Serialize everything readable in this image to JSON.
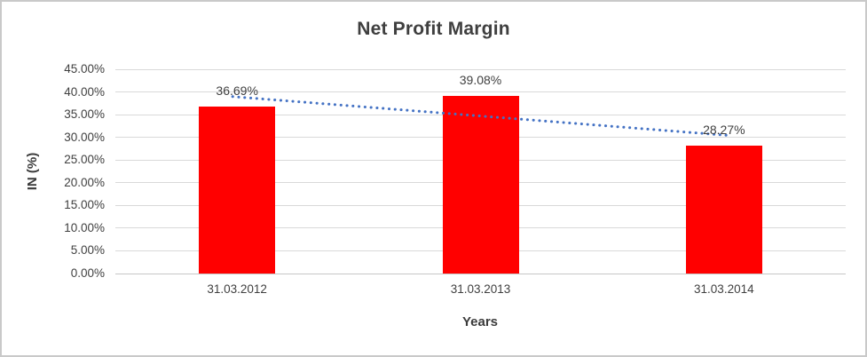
{
  "chart_data": {
    "type": "bar",
    "title": "Net Profit Margin",
    "xlabel": "Years",
    "ylabel": "IN (%)",
    "categories": [
      "31.03.2012",
      "31.03.2013",
      "31.03.2014"
    ],
    "values": [
      36.69,
      39.08,
      28.27
    ],
    "data_labels": [
      "36.69%",
      "39.08%",
      "28.27%"
    ],
    "ylim": [
      0,
      45
    ],
    "ytick_step": 5,
    "ytick_labels": [
      "0.00%",
      "5.00%",
      "10.00%",
      "15.00%",
      "20.00%",
      "25.00%",
      "30.00%",
      "35.00%",
      "40.00%",
      "45.00%"
    ],
    "grid": true,
    "legend": "none",
    "trendline": {
      "type": "linear",
      "style": "round-dot",
      "start_value": 38.9,
      "end_value": 30.5
    },
    "colors": {
      "bar": "#FF0000",
      "trendline": "#4472C4",
      "gridline": "#D9D9D9",
      "axis_line": "#C6C6C6",
      "text": "#404040",
      "frame_border": "#C9C9C9",
      "background": "#FFFFFF"
    }
  }
}
